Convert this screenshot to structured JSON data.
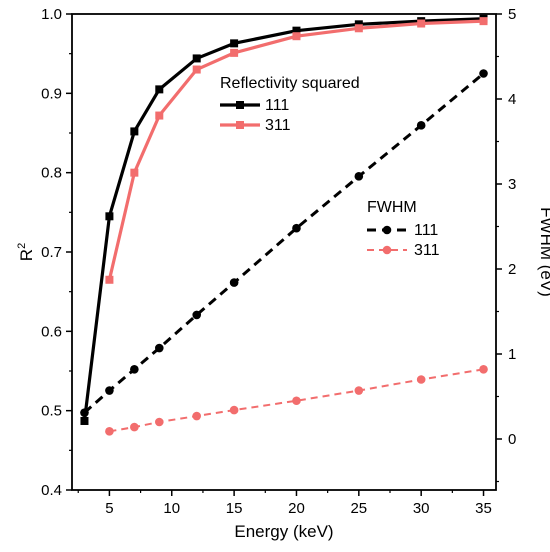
{
  "chart_data": {
    "type": "line",
    "xlabel": "Energy (keV)",
    "ylabel_left_base": "R",
    "ylabel_left_sup": "2",
    "ylabel_right": "FWHM (eV)",
    "xlim": [
      2,
      36
    ],
    "ylim_left": [
      0.4,
      1.0
    ],
    "ylim_right": [
      -0.6,
      5.0
    ],
    "x_ticks": [
      5,
      10,
      15,
      20,
      25,
      30,
      35
    ],
    "y_left_ticks": [
      0.4,
      0.5,
      0.6,
      0.7,
      0.8,
      0.9,
      1.0
    ],
    "y_right_ticks": [
      0,
      1,
      2,
      3,
      4,
      5
    ],
    "legend_reflectivity": {
      "title": "Reflectivity squared",
      "entries": [
        "111",
        "311"
      ]
    },
    "legend_fwhm": {
      "title": "FWHM",
      "entries": [
        "111",
        "311"
      ]
    },
    "series": [
      {
        "name": "111",
        "group": "Reflectivity squared",
        "axis": "left",
        "style": "solid",
        "marker": "square",
        "color": "#000000",
        "x": [
          3,
          5,
          7,
          9,
          12,
          15,
          20,
          25,
          30,
          35
        ],
        "y": [
          0.487,
          0.745,
          0.852,
          0.905,
          0.944,
          0.963,
          0.979,
          0.987,
          0.991,
          0.994
        ]
      },
      {
        "name": "311",
        "group": "Reflectivity squared",
        "axis": "left",
        "style": "solid",
        "marker": "square",
        "color": "#f26d6d",
        "x": [
          5,
          7,
          9,
          12,
          15,
          20,
          25,
          30,
          35
        ],
        "y": [
          0.665,
          0.8,
          0.872,
          0.93,
          0.951,
          0.972,
          0.982,
          0.988,
          0.991
        ]
      },
      {
        "name": "111",
        "group": "FWHM",
        "axis": "right",
        "style": "dashed",
        "marker": "circle",
        "color": "#000000",
        "x": [
          3,
          5,
          7,
          9,
          12,
          15,
          20,
          25,
          30,
          35
        ],
        "y": [
          0.31,
          0.57,
          0.82,
          1.07,
          1.46,
          1.84,
          2.48,
          3.09,
          3.69,
          4.3
        ]
      },
      {
        "name": "311",
        "group": "FWHM",
        "axis": "right",
        "style": "dashed",
        "marker": "circle",
        "color": "#f26d6d",
        "x": [
          5,
          7,
          9,
          12,
          15,
          20,
          25,
          30,
          35
        ],
        "y": [
          0.09,
          0.14,
          0.2,
          0.27,
          0.34,
          0.45,
          0.57,
          0.7,
          0.82
        ]
      }
    ]
  }
}
